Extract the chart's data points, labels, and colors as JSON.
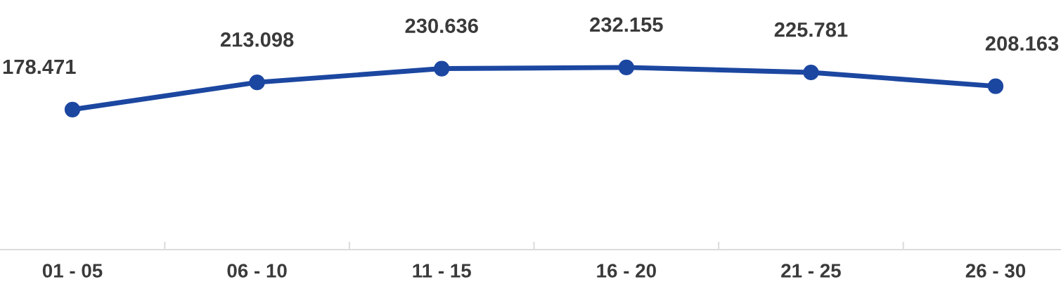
{
  "chart_data": {
    "type": "line",
    "categories": [
      "01 - 05",
      "06 - 10",
      "11 - 15",
      "16 - 20",
      "21 - 25",
      "26 - 30"
    ],
    "series": [
      {
        "color": "#1c47a1",
        "values": [
          178.471,
          213.098,
          230.636,
          232.155,
          225.781,
          208.163
        ]
      }
    ],
    "data_labels": true,
    "marker": "circle",
    "line_style": "solid",
    "grid": false,
    "legend": false
  }
}
